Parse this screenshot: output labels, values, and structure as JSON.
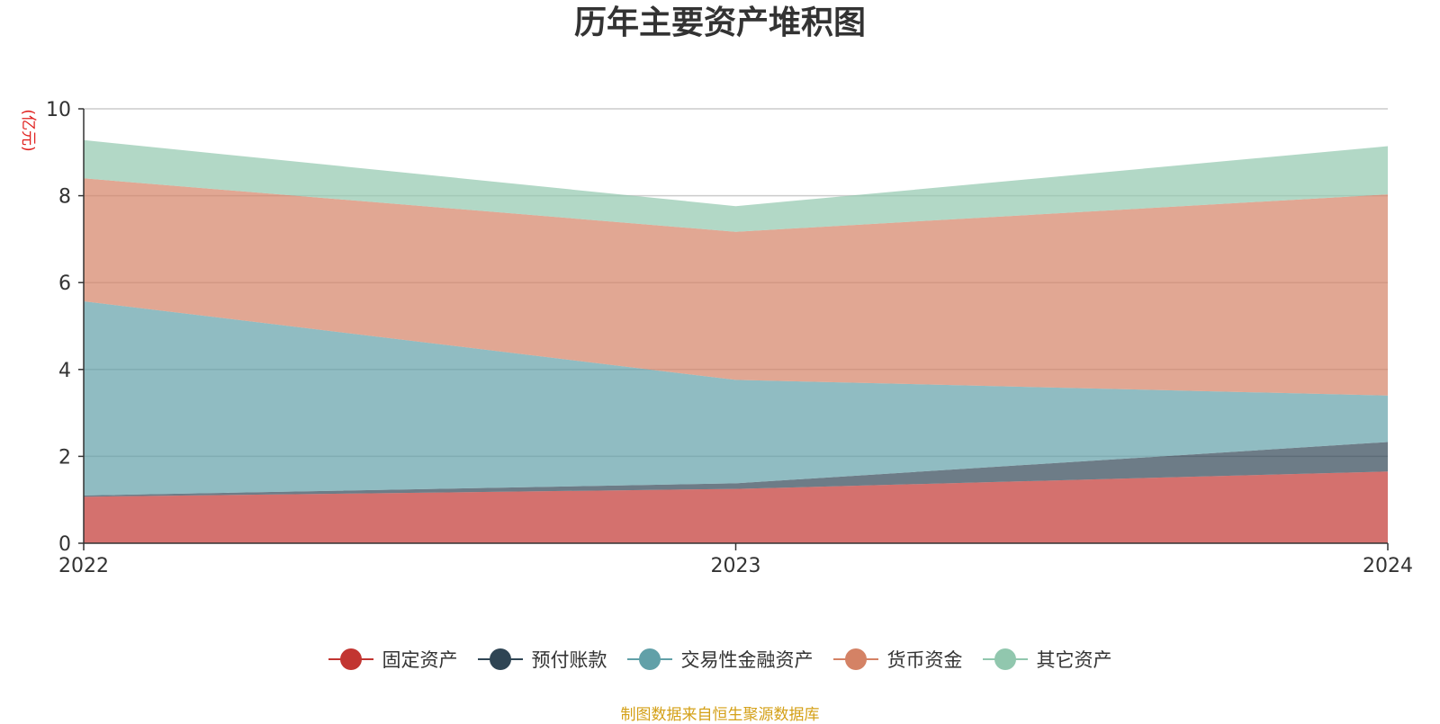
{
  "chart_data": {
    "type": "area",
    "stacked": true,
    "title": "历年主要资产堆积图",
    "ylabel": "(亿元)",
    "x": [
      "2022",
      "2023",
      "2024"
    ],
    "ylim": [
      0,
      10
    ],
    "yticks": [
      0,
      2,
      4,
      6,
      8,
      10
    ],
    "grid": true,
    "legend_position": "bottom",
    "series": [
      {
        "name": "固定资产",
        "color": "#c23531",
        "values": [
          1.07,
          1.25,
          1.65
        ]
      },
      {
        "name": "预付账款",
        "color": "#2f4554",
        "values": [
          0.03,
          0.13,
          0.68
        ]
      },
      {
        "name": "交易性金融资产",
        "color": "#61a0a8",
        "values": [
          4.47,
          2.38,
          1.07
        ]
      },
      {
        "name": "货币资金",
        "color": "#d48265",
        "values": [
          2.83,
          3.41,
          4.63
        ]
      },
      {
        "name": "其它资产",
        "color": "#91c7ae",
        "values": [
          0.88,
          0.59,
          1.11
        ]
      }
    ]
  },
  "source_note": "制图数据来自恒生聚源数据库",
  "colors": {
    "title": "#333333",
    "ylabel": "#e0201e",
    "source_note": "#d4a017",
    "grid": "#cccccc",
    "axis": "#333333"
  }
}
